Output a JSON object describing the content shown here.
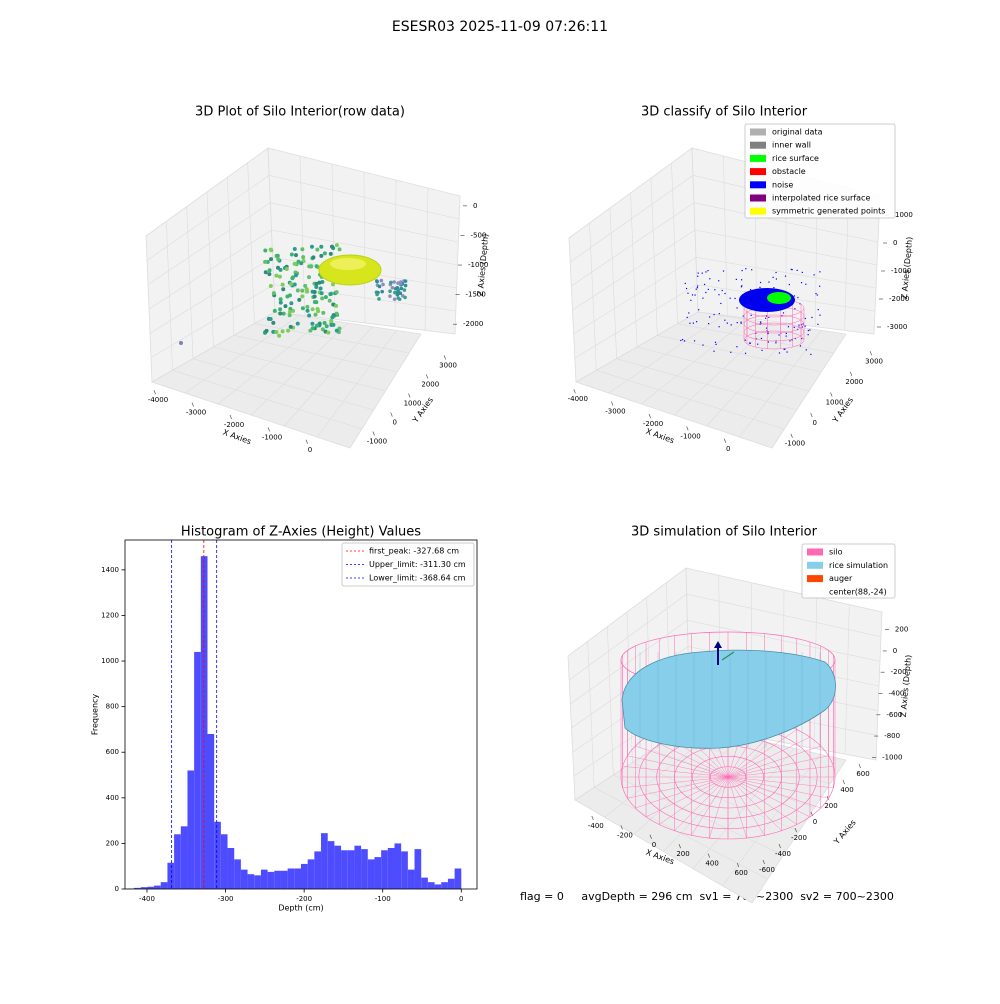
{
  "title": "ESESR03 2025-11-09 07:26:11",
  "footer": "flag = 0     avgDepth = 296 cm  sv1 = 700~2300  sv2 = 700~2300",
  "chart_data": [
    {
      "type": "scatter3d",
      "title": "3D Plot of Silo Interior(row data)",
      "xlabel": "X Axies",
      "ylabel": "Y Axies",
      "zlabel": "Z Axies (Depth)",
      "xlim": [
        -4500,
        500
      ],
      "xticks": [
        -4000,
        -3000,
        -2000,
        -1000,
        0
      ],
      "ylim": [
        -1500,
        3500
      ],
      "yticks": [
        -1000,
        0,
        1000,
        2000,
        3000
      ],
      "zlim": [
        -2300,
        200
      ],
      "zticks": [
        0,
        -500,
        -1000,
        -1500,
        -2000
      ]
    },
    {
      "type": "scatter3d",
      "title": "3D classify of Silo Interior",
      "xlabel": "X Axies",
      "ylabel": "Y Axies",
      "zlabel": "Z Axies (Depth)",
      "xlim": [
        -4500,
        500
      ],
      "xticks": [
        -4000,
        -3000,
        -2000,
        -1000,
        0
      ],
      "ylim": [
        -1500,
        3500
      ],
      "yticks": [
        -1000,
        0,
        1000,
        2000,
        3000
      ],
      "zlim": [
        -3500,
        1500
      ],
      "zticks": [
        1000,
        0,
        -1000,
        -2000,
        -3000
      ],
      "legend": "upper right",
      "series": [
        {
          "name": "original data",
          "color": "#b0b0b0"
        },
        {
          "name": "inner wall",
          "color": "#808080"
        },
        {
          "name": "rice surface",
          "color": "#00ff00"
        },
        {
          "name": "obstacle",
          "color": "#ff0000"
        },
        {
          "name": "noise",
          "color": "#0000ff"
        },
        {
          "name": "interpolated rice surface",
          "color": "#800080"
        },
        {
          "name": "symmetric generated points",
          "color": "#ffff00"
        }
      ]
    },
    {
      "type": "histogram",
      "title": "Histogram of Z-Axies (Height) Values",
      "xlabel": "Depth (cm)",
      "ylabel": "Frequency",
      "color": "#4d4dff",
      "bins": [
        -425,
        -416.5,
        -408,
        -399.5,
        -391,
        -382.5,
        -374,
        -365.5,
        -357,
        -348.5,
        -340,
        -331.5,
        -323,
        -314.5,
        -306,
        -297.5,
        -289,
        -280.5,
        -272,
        -263.5,
        -255,
        -246.5,
        -238,
        -229.5,
        -221,
        -212.5,
        -204,
        -195.5,
        -187,
        -178.5,
        -170,
        -161.5,
        -153,
        -144.5,
        -136,
        -127.5,
        -119,
        -110.5,
        -102,
        -93.5,
        -85,
        -76.5,
        -68,
        -59.5,
        -51,
        -42.5,
        -34,
        -25.5,
        -17,
        -8.5,
        0
      ],
      "values": [
        2,
        5,
        8,
        10,
        15,
        30,
        115,
        240,
        275,
        520,
        1040,
        1460,
        680,
        295,
        240,
        180,
        130,
        85,
        65,
        60,
        85,
        75,
        80,
        80,
        90,
        90,
        110,
        130,
        165,
        245,
        210,
        190,
        170,
        170,
        190,
        175,
        130,
        140,
        170,
        180,
        200,
        165,
        85,
        175,
        50,
        30,
        20,
        30,
        45,
        90
      ],
      "xlim": [
        -428,
        20
      ],
      "xticks": [
        -400,
        -300,
        -200,
        -100,
        0
      ],
      "ylim": [
        0,
        1531
      ],
      "yticks": [
        0,
        200,
        400,
        600,
        800,
        1000,
        1200,
        1400
      ],
      "legend": "upper right",
      "lines": [
        {
          "name": "first_peak: -327.68 cm",
          "value": -327.68,
          "color": "#ff0000"
        },
        {
          "name": "Upper_limit: -311.30 cm",
          "value": -311.3,
          "color": "#0000ff"
        },
        {
          "name": "Lower_limit: -368.64 cm",
          "value": -368.64,
          "color": "#0000ff"
        }
      ]
    },
    {
      "type": "surface3d",
      "title": "3D simulation of Silo Interior",
      "xlabel": "X Axies",
      "ylabel": "Y Axies",
      "zlabel": "Z Axies (Depth)",
      "xlim": [
        -550,
        750
      ],
      "xticks": [
        -400,
        -200,
        0,
        200,
        400,
        600
      ],
      "ylim": [
        -700,
        700
      ],
      "yticks": [
        -600,
        -400,
        -200,
        0,
        200,
        400,
        600
      ],
      "zlim": [
        -1100,
        300
      ],
      "zticks": [
        200,
        0,
        -200,
        -400,
        -600,
        -800,
        -1000
      ],
      "legend": "upper right",
      "series": [
        {
          "name": "silo",
          "color": "#ff69b4"
        },
        {
          "name": "rice simulation",
          "color": "#87ceeb"
        },
        {
          "name": "auger",
          "color": "#ff4500"
        },
        {
          "name": "center(88,-24)",
          "color": "#ffffff"
        }
      ]
    }
  ]
}
